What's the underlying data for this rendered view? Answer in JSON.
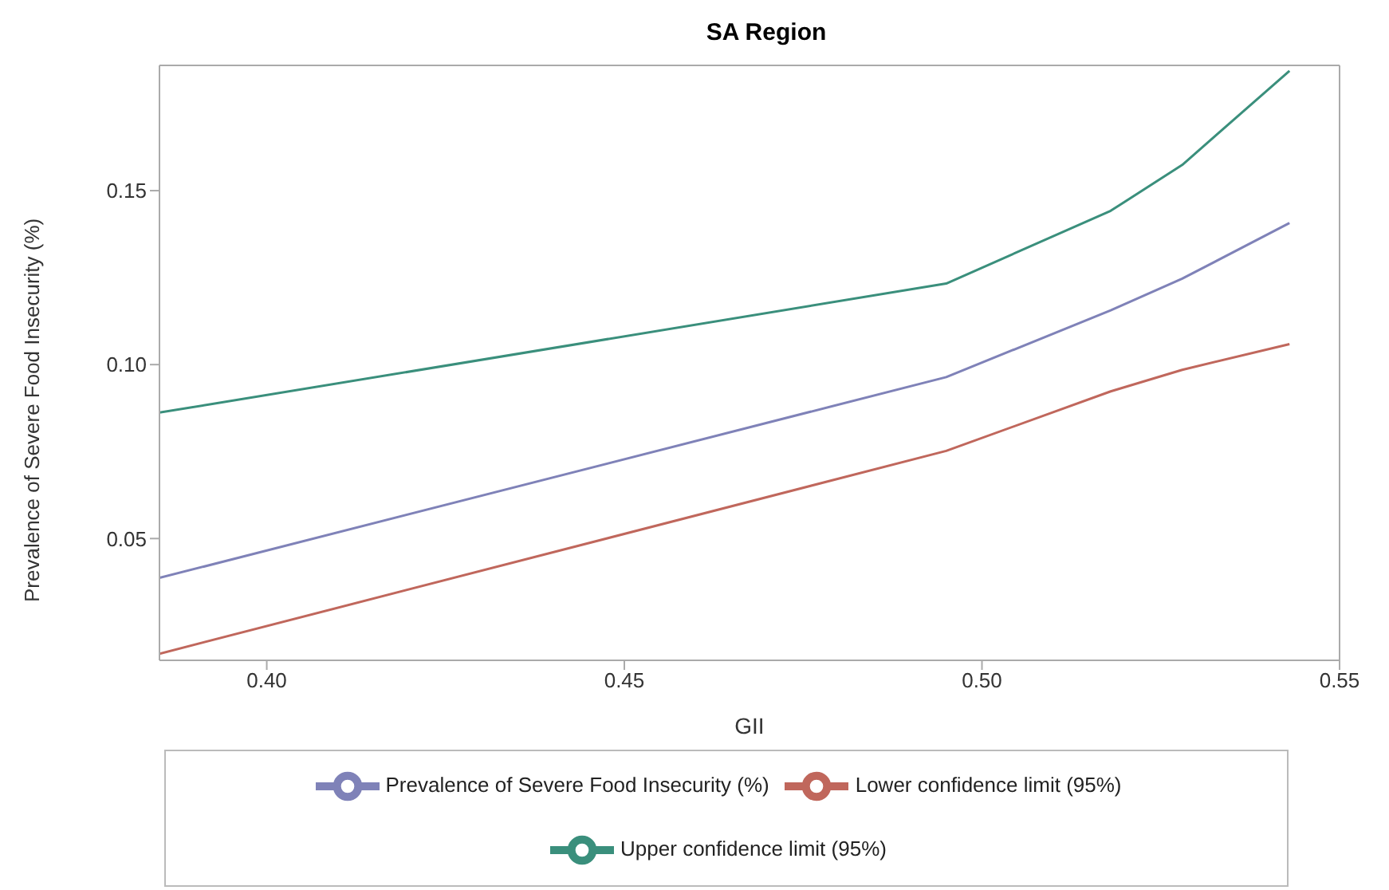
{
  "chart_data": {
    "type": "line",
    "title": "SA Region",
    "xlabel": "GII",
    "ylabel": "Prevalence of Severe Food Insecurity (%)",
    "x": [
      0.385,
      0.495,
      0.518,
      0.528,
      0.543
    ],
    "series": [
      {
        "name": "Prevalence of Severe Food Insecurity (%)",
        "color": "#7f82b8",
        "values": [
          0.0387,
          0.0964,
          0.1156,
          0.1247,
          0.1407
        ]
      },
      {
        "name": "Lower confidence limit (95%)",
        "color": "#c0675c",
        "values": [
          0.0169,
          0.0752,
          0.0923,
          0.0985,
          0.1059
        ]
      },
      {
        "name": "Upper confidence limit (95%)",
        "color": "#3a8f7c",
        "values": [
          0.0862,
          0.1233,
          0.1442,
          0.1574,
          0.1844
        ]
      }
    ],
    "xlim": [
      0.385,
      0.55
    ],
    "xticks": [
      {
        "value": 0.4,
        "label": "0.40"
      },
      {
        "value": 0.45,
        "label": "0.45"
      },
      {
        "value": 0.5,
        "label": "0.50"
      },
      {
        "value": 0.55,
        "label": "0.55"
      }
    ],
    "ylim": [
      0.015,
      0.186
    ],
    "yticks": [
      0.05,
      {
        "value": 0.1,
        "label": "0.10"
      },
      0.15
    ],
    "legend": "bottom",
    "marker": "none",
    "line_style": "solid"
  }
}
